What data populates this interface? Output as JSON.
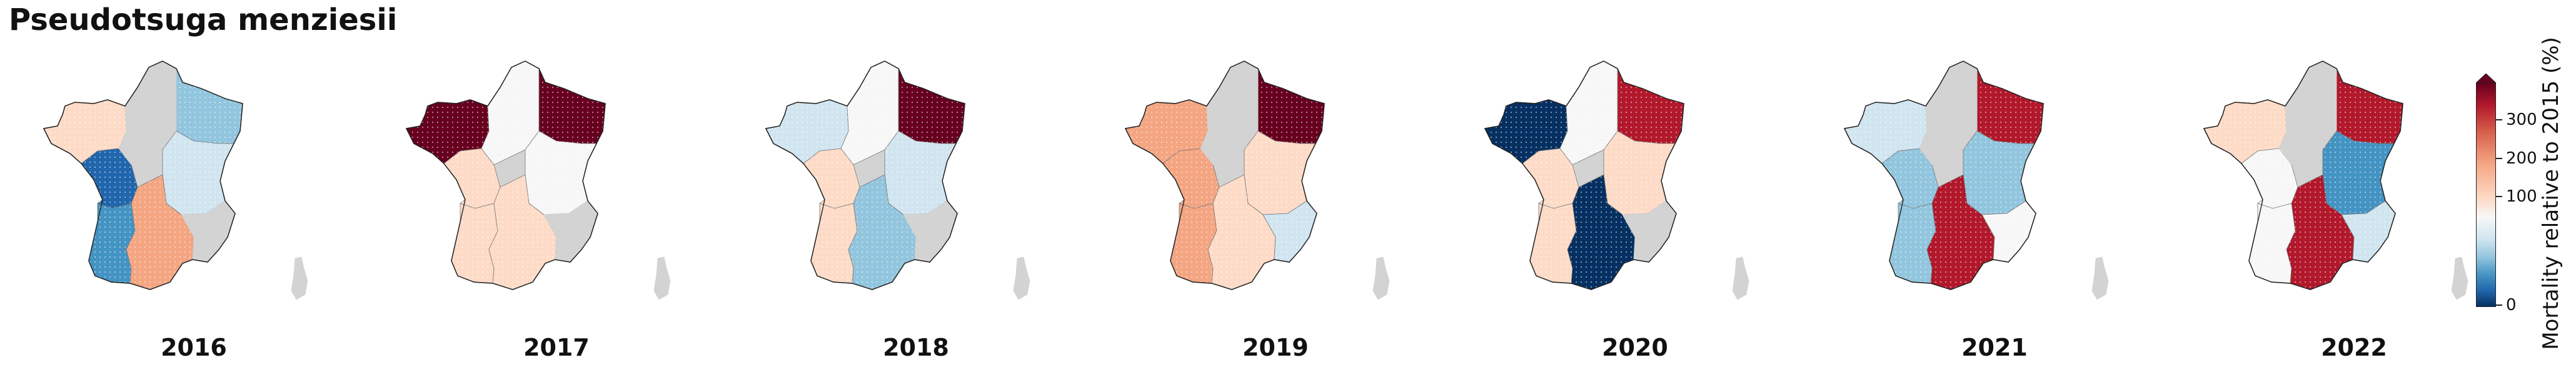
{
  "title": "Pseudotsuga menziesii",
  "colorbar": {
    "label": "Mortality relative to 2015 (%)",
    "ticks": [
      "0",
      "100",
      "200",
      "300"
    ]
  },
  "colors": {
    "nodata": "#d3d3d3",
    "scale": [
      "#053061",
      "#2166ac",
      "#4393c3",
      "#92c5de",
      "#d1e5f0",
      "#f7f7f7",
      "#fddbc7",
      "#f4a582",
      "#d6604d",
      "#b2182b",
      "#67001f"
    ]
  },
  "map_regions": [
    "NW",
    "NE",
    "W",
    "C",
    "E",
    "SW",
    "S",
    "SE",
    "Corsica"
  ],
  "panels": [
    {
      "year": "2016",
      "regions": {
        "NW": "#fddbc7",
        "NE": "#92c5de",
        "W": "#2166ac",
        "C": "#d3d3d3",
        "E": "#d1e5f0",
        "SW": "#4393c3",
        "S": "#f4a582",
        "SE": "#d3d3d3",
        "Corsica": "#d3d3d3"
      }
    },
    {
      "year": "2017",
      "regions": {
        "NW": "#67001f",
        "NE": "#67001f",
        "W": "#fddbc7",
        "C": "#f7f7f7",
        "E": "#f7f7f7",
        "SW": "#fddbc7",
        "S": "#fddbc7",
        "SE": "#d3d3d3",
        "Corsica": "#d3d3d3"
      }
    },
    {
      "year": "2018",
      "regions": {
        "NW": "#d1e5f0",
        "NE": "#67001f",
        "W": "#fddbc7",
        "C": "#f7f7f7",
        "E": "#d1e5f0",
        "SW": "#fddbc7",
        "S": "#92c5de",
        "SE": "#d3d3d3",
        "Corsica": "#d3d3d3"
      }
    },
    {
      "year": "2019",
      "regions": {
        "NW": "#f4a582",
        "NE": "#67001f",
        "W": "#f4a582",
        "C": "#d3d3d3",
        "E": "#fddbc7",
        "SW": "#f4a582",
        "S": "#fddbc7",
        "SE": "#d1e5f0",
        "Corsica": "#d3d3d3"
      }
    },
    {
      "year": "2020",
      "regions": {
        "NW": "#053061",
        "NE": "#b2182b",
        "W": "#fddbc7",
        "C": "#f7f7f7",
        "E": "#fddbc7",
        "SW": "#fddbc7",
        "S": "#053061",
        "SE": "#d3d3d3",
        "Corsica": "#d3d3d3"
      }
    },
    {
      "year": "2021",
      "regions": {
        "NW": "#d1e5f0",
        "NE": "#b2182b",
        "W": "#92c5de",
        "C": "#d3d3d3",
        "E": "#92c5de",
        "SW": "#92c5de",
        "S": "#b2182b",
        "SE": "#f7f7f7",
        "Corsica": "#d3d3d3"
      }
    },
    {
      "year": "2022",
      "regions": {
        "NW": "#fddbc7",
        "NE": "#b2182b",
        "W": "#f7f7f7",
        "C": "#d3d3d3",
        "E": "#4393c3",
        "SW": "#f7f7f7",
        "S": "#b2182b",
        "SE": "#d1e5f0",
        "Corsica": "#d3d3d3"
      }
    }
  ]
}
